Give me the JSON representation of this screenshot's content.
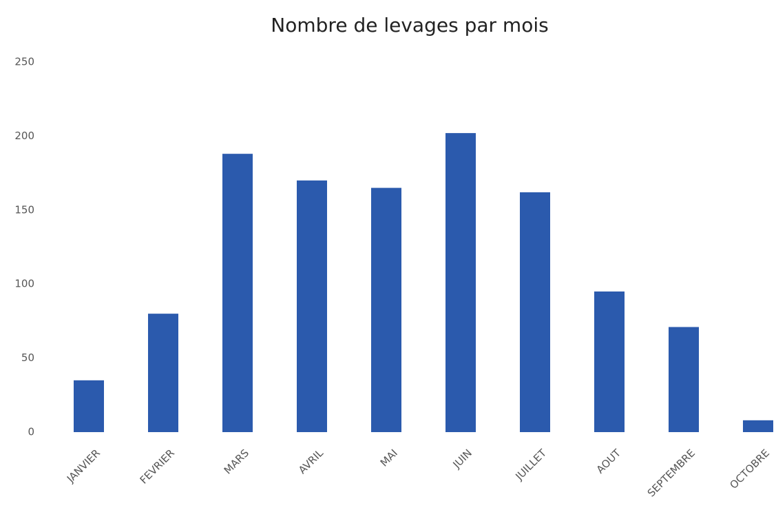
{
  "chart_data": {
    "type": "bar",
    "title": "Nombre de levages par mois",
    "categories": [
      "JANVIER",
      "FEVRIER",
      "MARS",
      "AVRIL",
      "MAI",
      "JUIN",
      "JUILLET",
      "AOUT",
      "SEPTEMBRE",
      "OCTOBRE"
    ],
    "values": [
      35,
      80,
      188,
      170,
      165,
      202,
      162,
      95,
      71,
      8
    ],
    "color": "#2b5aad",
    "ylim": [
      0,
      250
    ],
    "yticks": [
      0,
      50,
      100,
      150,
      200,
      250
    ],
    "grid": false
  }
}
